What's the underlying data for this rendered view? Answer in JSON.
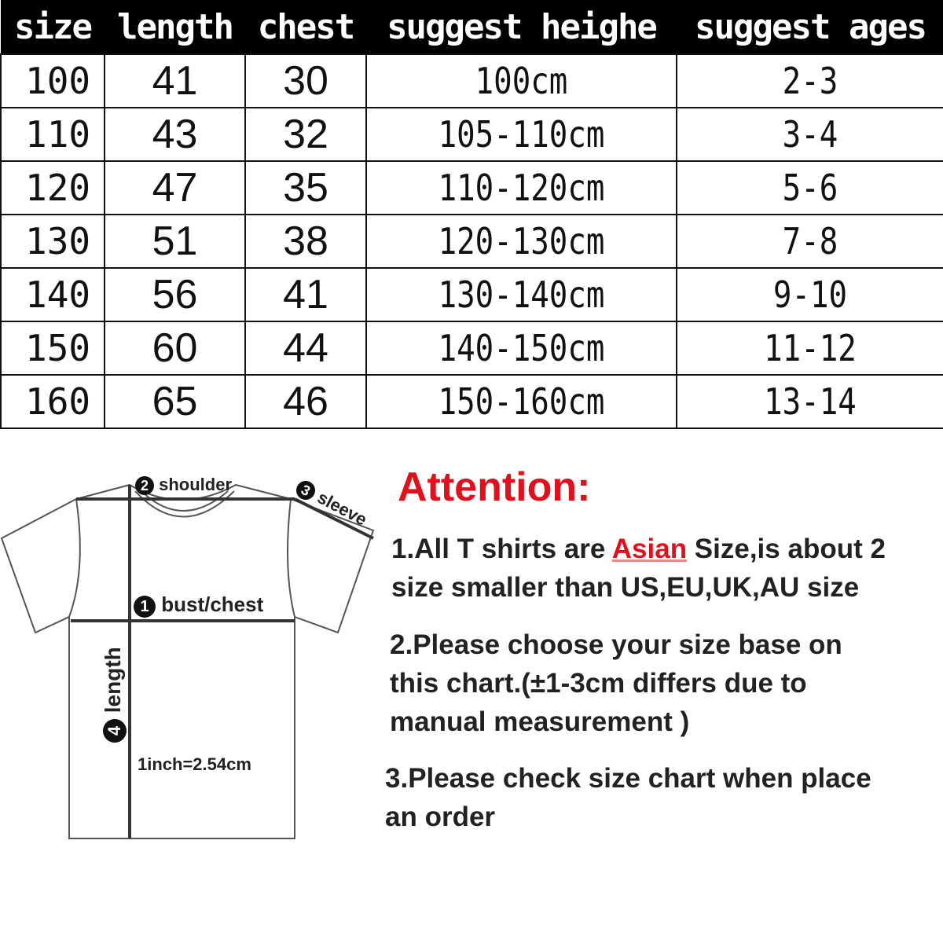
{
  "table": {
    "headers": [
      "size",
      "length",
      "chest",
      "suggest heighe",
      "suggest ages"
    ],
    "rows": [
      [
        "100",
        "41",
        "30",
        "100cm",
        "2-3"
      ],
      [
        "110",
        "43",
        "32",
        "105-110cm",
        "3-4"
      ],
      [
        "120",
        "47",
        "35",
        "110-120cm",
        "5-6"
      ],
      [
        "130",
        "51",
        "38",
        "120-130cm",
        "7-8"
      ],
      [
        "140",
        "56",
        "41",
        "130-140cm",
        "9-10"
      ],
      [
        "150",
        "60",
        "44",
        "140-150cm",
        "11-12"
      ],
      [
        "160",
        "65",
        "46",
        "150-160cm",
        "13-14"
      ]
    ]
  },
  "diagram": {
    "shoulder": {
      "num": "2",
      "label": "shoulder"
    },
    "sleeve": {
      "num": "3",
      "label": "sleeve"
    },
    "chest": {
      "num": "1",
      "label": "bust/chest"
    },
    "length": {
      "num": "4",
      "label": "length"
    },
    "conversion": "1inch=2.54cm"
  },
  "notes": {
    "title": "Attention:",
    "p1_pre": "1.All T shirts are ",
    "p1_highlight": "Asian",
    "p1_post": " Size,is about 2",
    "p1_line2": "size smaller than US,EU,UK,AU size",
    "p2_line1": "2.Please choose your size base on",
    "p2_line2": "this chart.(±1-3cm differs due to",
    "p2_line3": "manual measurement )",
    "p3_line1": "3.Please check size chart when place",
    "p3_line2": "an order"
  },
  "colors": {
    "header_bg": "#000000",
    "accent_red": "#e0101c"
  }
}
